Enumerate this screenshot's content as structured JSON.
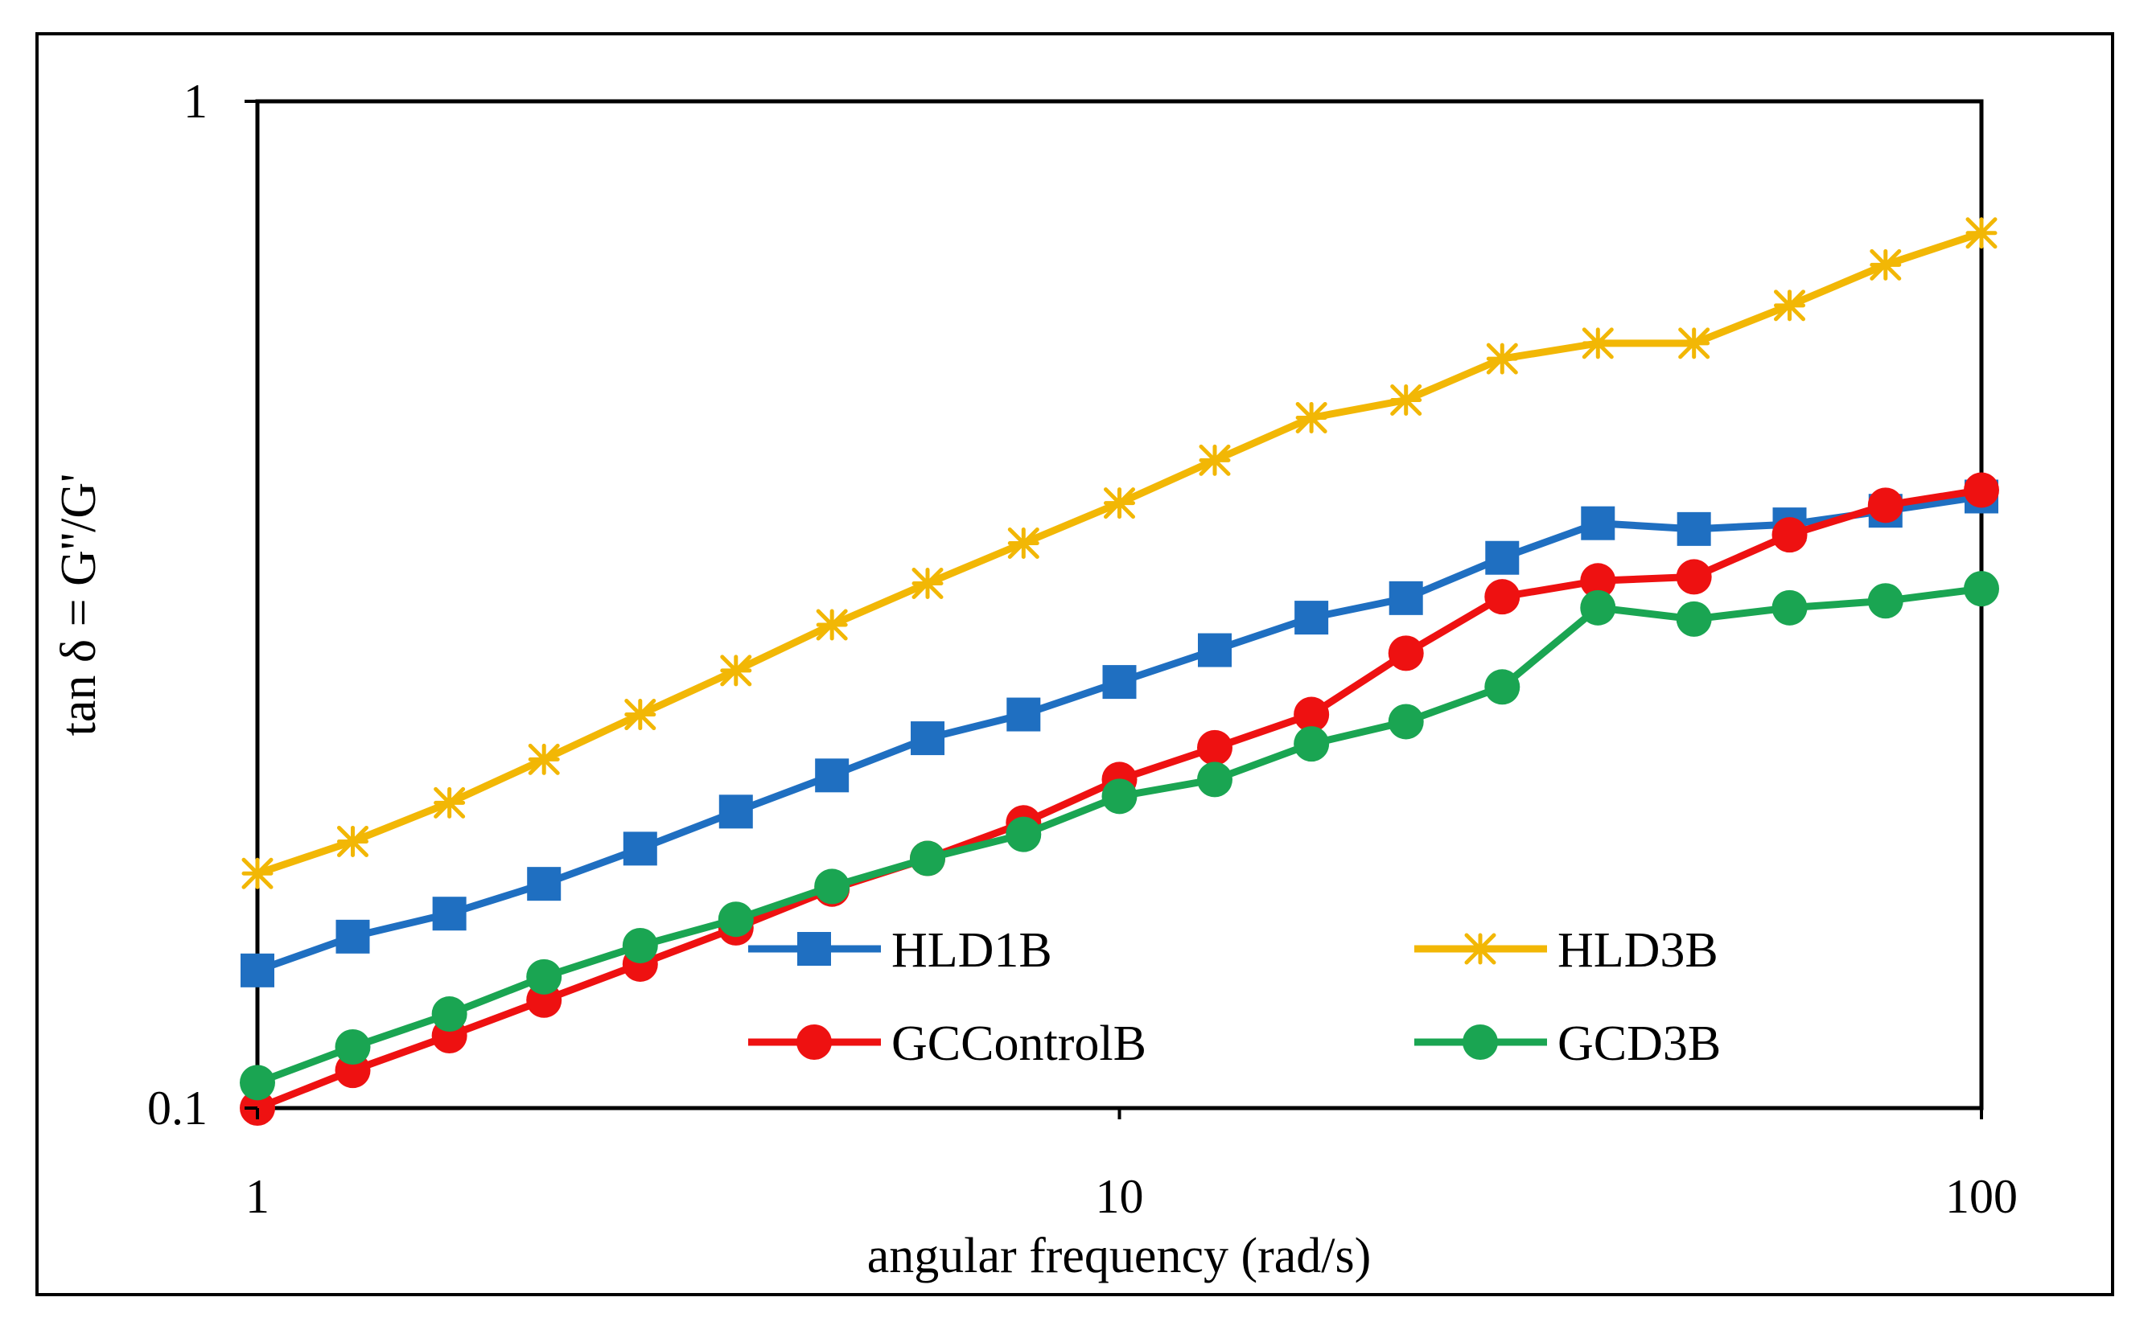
{
  "chart_data": {
    "type": "line",
    "x_scale": "log",
    "y_scale": "log",
    "xlabel": "angular frequency (rad/s)",
    "ylabel": "tan δ = G''/G'",
    "xlim": [
      1,
      100
    ],
    "ylim": [
      0.1,
      1
    ],
    "x_ticks": [
      {
        "value": 1,
        "label": "1"
      },
      {
        "value": 10,
        "label": "10"
      },
      {
        "value": 100,
        "label": "100"
      }
    ],
    "y_ticks": [
      {
        "value": 0.1,
        "label": "0.1"
      },
      {
        "value": 1,
        "label": "1"
      }
    ],
    "grid": false,
    "legend_position": "bottom-center",
    "x": [
      1,
      1.29,
      1.67,
      2.15,
      2.78,
      3.59,
      4.64,
      5.99,
      7.74,
      10,
      12.9,
      16.7,
      21.5,
      27.8,
      35.9,
      46.4,
      59.9,
      77.4,
      100
    ],
    "series": [
      {
        "name": "HLD1B",
        "color": "#1f6fc1",
        "marker": "square",
        "values": [
          0.137,
          0.148,
          0.156,
          0.167,
          0.181,
          0.197,
          0.214,
          0.233,
          0.246,
          0.265,
          0.285,
          0.307,
          0.321,
          0.352,
          0.381,
          0.376,
          0.38,
          0.392,
          0.405
        ]
      },
      {
        "name": "HLD3B",
        "color": "#f2b705",
        "marker": "star",
        "values": [
          0.171,
          0.184,
          0.201,
          0.222,
          0.246,
          0.272,
          0.302,
          0.332,
          0.364,
          0.399,
          0.44,
          0.485,
          0.505,
          0.555,
          0.575,
          0.575,
          0.627,
          0.688,
          0.74
        ]
      },
      {
        "name": "GCControlB",
        "color": "#ee1111",
        "marker": "circle",
        "values": [
          0.1,
          0.109,
          0.118,
          0.128,
          0.139,
          0.151,
          0.165,
          0.177,
          0.192,
          0.212,
          0.228,
          0.246,
          0.283,
          0.322,
          0.334,
          0.337,
          0.371,
          0.397,
          0.411
        ]
      },
      {
        "name": "GCD3B",
        "color": "#1aa552",
        "marker": "circle",
        "values": [
          0.106,
          0.115,
          0.124,
          0.135,
          0.145,
          0.154,
          0.166,
          0.177,
          0.187,
          0.204,
          0.212,
          0.23,
          0.242,
          0.262,
          0.314,
          0.306,
          0.314,
          0.319,
          0.328
        ]
      }
    ]
  }
}
